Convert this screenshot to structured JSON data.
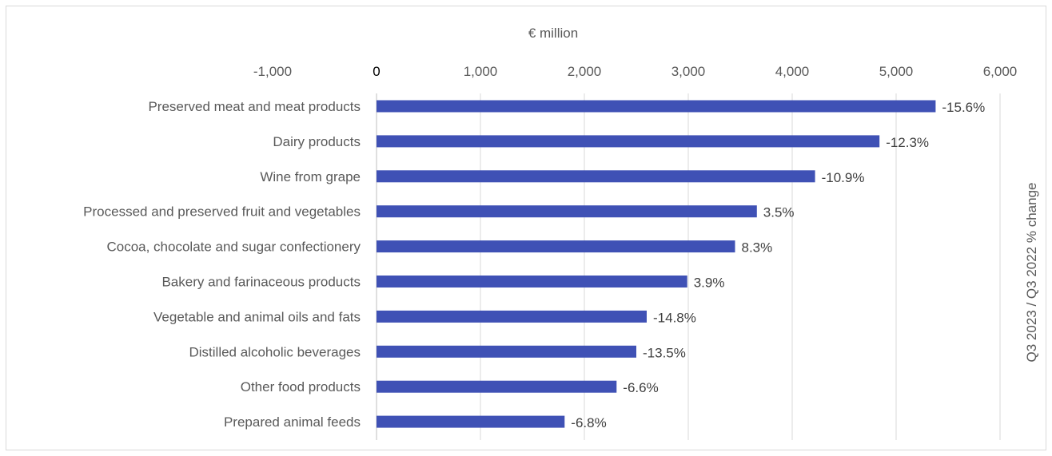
{
  "chart_data": {
    "type": "bar",
    "orientation": "horizontal",
    "x_axis_title": "€ million",
    "secondary_axis_title": "Q3 2023 / Q3 2022 % change",
    "xlim": [
      -1000,
      6000
    ],
    "x_ticks": [
      -1000,
      0,
      1000,
      2000,
      3000,
      4000,
      5000,
      6000
    ],
    "x_tick_labels": [
      "-1,000",
      "0",
      "1,000",
      "2,000",
      "3,000",
      "4,000",
      "5,000",
      "6,000"
    ],
    "gridlines": true,
    "bar_color": "#3f51b5",
    "categories": [
      "Preserved meat and meat products",
      "Dairy products",
      "Wine from grape",
      "Processed and preserved fruit and vegetables",
      "Cocoa, chocolate and sugar confectionery",
      "Bakery and farinaceous products",
      "Vegetable and animal oils and fats",
      "Distilled alcoholic beverages",
      "Other food products",
      "Prepared animal feeds"
    ],
    "values": [
      5380,
      4840,
      4220,
      3660,
      3450,
      2990,
      2600,
      2500,
      2310,
      1810
    ],
    "data_labels": [
      "-15.6%",
      "-12.3%",
      "-10.9%",
      "3.5%",
      "8.3%",
      "3.9%",
      "-14.8%",
      "-13.5%",
      "-6.6%",
      "-6.8%"
    ]
  }
}
